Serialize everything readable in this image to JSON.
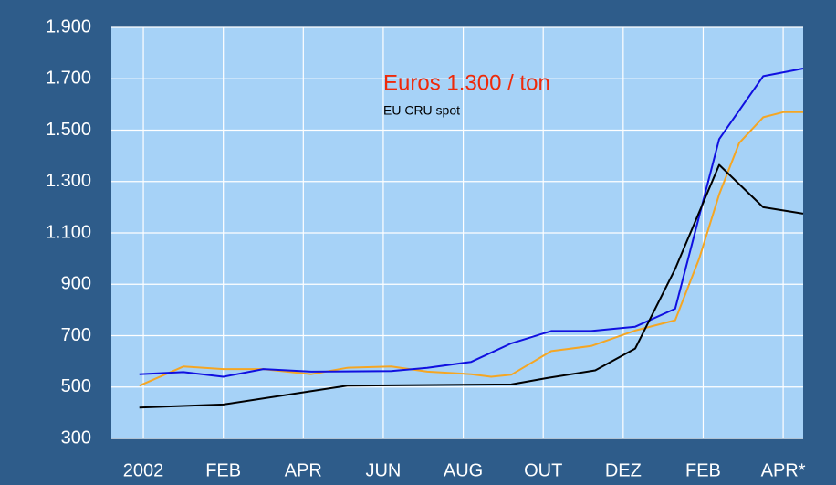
{
  "chart_data": {
    "type": "line",
    "annotations": [
      "Euros 1.300 / ton",
      "EU CRU spot"
    ],
    "xlim": [
      -0.8,
      16.5
    ],
    "xticks": [
      {
        "value": 0,
        "label": "2002"
      },
      {
        "value": 2,
        "label": "FEB"
      },
      {
        "value": 4,
        "label": "APR"
      },
      {
        "value": 6,
        "label": "JUN"
      },
      {
        "value": 8,
        "label": "AUG"
      },
      {
        "value": 10,
        "label": "OUT"
      },
      {
        "value": 12,
        "label": "DEZ"
      },
      {
        "value": 14,
        "label": "FEB"
      },
      {
        "value": 16,
        "label": "APR*"
      }
    ],
    "ylim": [
      300,
      1900
    ],
    "yticks": [
      300,
      500,
      700,
      900,
      {
        "value": 1100,
        "label": "1.100"
      },
      {
        "value": 1300,
        "label": "1.300"
      },
      {
        "value": 1500,
        "label": "1.500"
      },
      {
        "value": 1700,
        "label": "1.700"
      },
      {
        "value": 1900,
        "label": "1.900"
      }
    ],
    "grid": true,
    "series": [
      {
        "color": "#f5a623",
        "x": [
          -0.1,
          1.0,
          2.0,
          3.0,
          4.2,
          5.1,
          6.2,
          7.1,
          8.2,
          8.7,
          9.2,
          10.2,
          11.2,
          12.3,
          13.3,
          13.9,
          14.4,
          14.9,
          15.5,
          16.0,
          16.5
        ],
        "values": [
          505,
          580,
          570,
          570,
          550,
          575,
          580,
          560,
          550,
          540,
          548,
          640,
          660,
          720,
          760,
          1000,
          1250,
          1450,
          1550,
          1570,
          1570
        ]
      },
      {
        "color": "#1010e0",
        "x": [
          -0.1,
          1.0,
          2.0,
          3.0,
          4.2,
          6.2,
          7.1,
          8.2,
          9.2,
          10.2,
          11.2,
          12.3,
          13.3,
          14.4,
          15.5,
          16.5
        ],
        "values": [
          550,
          558,
          540,
          570,
          560,
          562,
          575,
          598,
          670,
          718,
          718,
          735,
          805,
          1465,
          1710,
          1740
        ]
      },
      {
        "color": "#000000",
        "x": [
          -0.1,
          2.0,
          5.1,
          9.2,
          10.1,
          11.3,
          12.3,
          13.3,
          14.4,
          15.5,
          16.5
        ],
        "values": [
          420,
          432,
          505,
          510,
          535,
          565,
          650,
          960,
          1365,
          1200,
          1175
        ]
      }
    ]
  }
}
